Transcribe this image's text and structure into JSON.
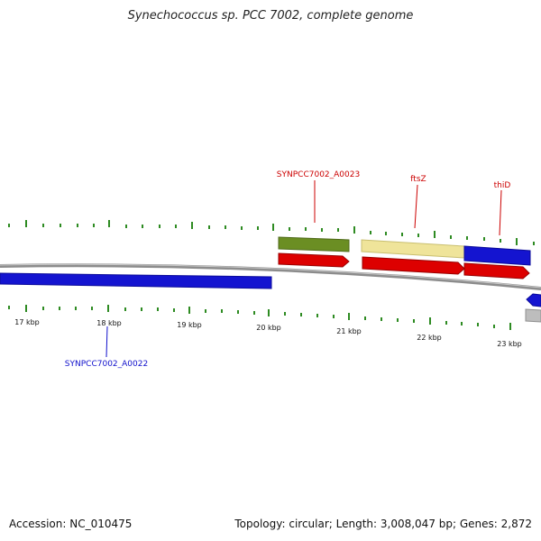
{
  "title": "Synechococcus sp. PCC 7002, complete genome",
  "footer": {
    "accession": "Accession: NC_010475",
    "summary": "Topology: circular; Length: 3,008,047 bp; Genes: 2,872"
  },
  "colors": {
    "backbone": "#8c8c8c",
    "tick": "#2e8b22",
    "label_red": "#cc0000",
    "label_blue": "#1010cc",
    "gene_blue": "#1414d0",
    "gene_red": "#dd0000",
    "gene_olive": "#6b8e23",
    "gene_khaki": "#efe49a",
    "gene_gray": "#bdbdbd"
  },
  "tick_labels": [
    "17 kbp",
    "18 kbp",
    "19 kbp",
    "20 kbp",
    "21 kbp",
    "22 kbp",
    "23 kbp"
  ],
  "gene_labels": {
    "a0023": "SYNPCC7002_A0023",
    "ftsz": "ftsZ",
    "thid": "thiD",
    "a0022": "SYNPCC7002_A0022"
  }
}
